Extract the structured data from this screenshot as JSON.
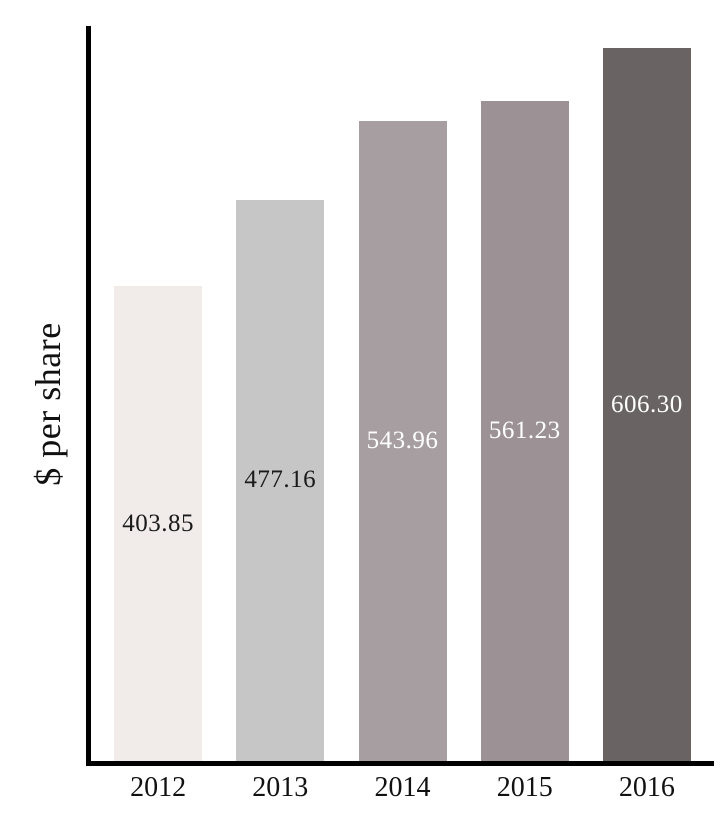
{
  "chart_data": {
    "type": "bar",
    "title": "",
    "xlabel": "",
    "ylabel": "$ per share",
    "categories": [
      "2012",
      "2013",
      "2014",
      "2015",
      "2016"
    ],
    "values": [
      403.85,
      477.16,
      543.96,
      561.23,
      606.3
    ],
    "value_labels": [
      "403.85",
      "477.16",
      "543.96",
      "561.23",
      "606.30"
    ],
    "ylim": [
      0,
      625
    ],
    "grid": false,
    "legend": false,
    "bar_colors": [
      "#f1ebe9",
      "#c7c6c6",
      "#a79ea1",
      "#9c9295",
      "#6a6364"
    ],
    "value_label_colors": [
      "#1a1a1a",
      "#1a1a1a",
      "#ffffff",
      "#ffffff",
      "#ffffff"
    ],
    "axis_color": "#000000",
    "value_label_position": "center-of-bar"
  }
}
